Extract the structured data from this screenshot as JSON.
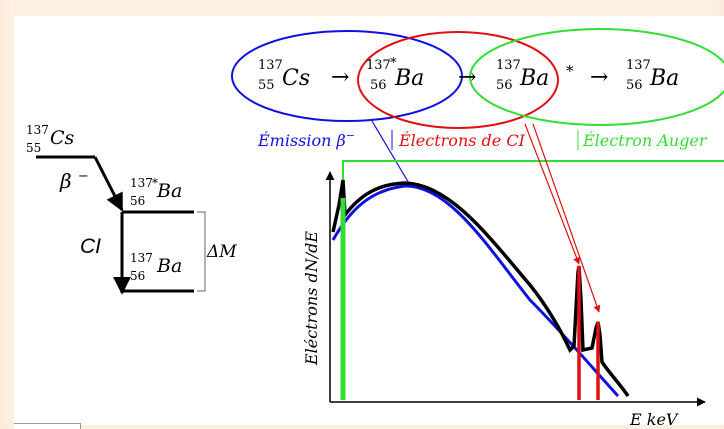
{
  "decay_scheme": {
    "parent": {
      "mass": "137",
      "atomic_number": "55",
      "symbol": "Cs"
    },
    "excited": {
      "mass": "137",
      "star": "*",
      "atomic_number": "56",
      "symbol": "Ba"
    },
    "ground": {
      "mass": "137",
      "atomic_number": "56",
      "symbol": "Ba"
    },
    "beta_label": "β",
    "beta_sup": "−",
    "ci_label": "CI",
    "delta_m_label": "ΔM"
  },
  "chain": {
    "arrow": "→",
    "nodes": [
      {
        "mass": "137",
        "pre_star": "",
        "atomic_number": "55",
        "symbol": "Cs",
        "post_star": ""
      },
      {
        "mass": "137",
        "pre_star": "*",
        "atomic_number": "56",
        "symbol": "Ba",
        "post_star": ""
      },
      {
        "mass": "137",
        "pre_star": "",
        "atomic_number": "56",
        "symbol": "Ba",
        "post_star": "*"
      },
      {
        "mass": "137",
        "pre_star": "",
        "atomic_number": "56",
        "symbol": "Ba",
        "post_star": ""
      }
    ],
    "labels": {
      "emission": {
        "text": "Émission β",
        "sup": "−"
      },
      "ci_electrons": "Électrons de CI",
      "auger": "Électron Auger"
    }
  },
  "spectrum": {
    "ylabel": "Eléctrons dN/dE",
    "xlabel": "E keV"
  },
  "colors": {
    "beta": "#1010e0",
    "ci": "#e01010",
    "auger": "#33dd33",
    "ink": "#000000",
    "panel": "#ffffff",
    "background": "#fdf0e2"
  }
}
